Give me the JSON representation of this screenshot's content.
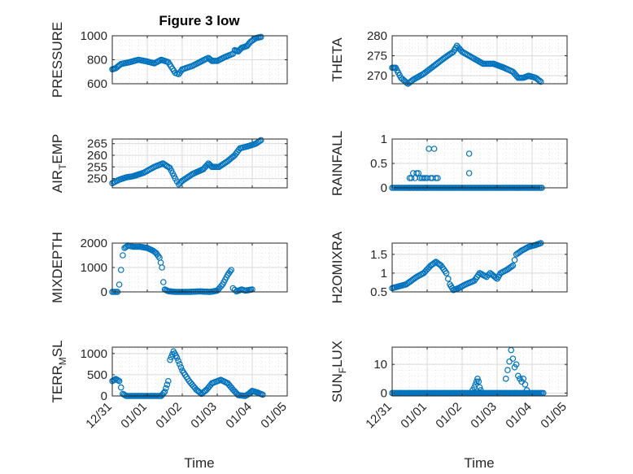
{
  "figure_title": "Figure 3 low",
  "chart_data": [
    {
      "id": "pressure",
      "type": "scatter",
      "ylabel": "PRESSURE",
      "ylim": [
        600,
        1000
      ],
      "yticks": [
        600,
        800,
        1000
      ],
      "xlim": [
        0,
        5
      ],
      "xticks": [
        0,
        1,
        2,
        3,
        4,
        5
      ],
      "xticklabels": [
        "12/31",
        "01/01",
        "01/02",
        "01/03",
        "01/04",
        "01/05"
      ],
      "grid": true,
      "marker": "circle",
      "keypoints": [
        [
          0,
          720
        ],
        [
          0.1,
          730
        ],
        [
          0.25,
          765
        ],
        [
          0.5,
          780
        ],
        [
          0.75,
          800
        ],
        [
          1.0,
          785
        ],
        [
          1.2,
          770
        ],
        [
          1.4,
          800
        ],
        [
          1.6,
          780
        ],
        [
          1.8,
          690
        ],
        [
          1.9,
          680
        ],
        [
          2.0,
          720
        ],
        [
          2.3,
          750
        ],
        [
          2.5,
          780
        ],
        [
          2.7,
          810
        ],
        [
          2.75,
          815
        ],
        [
          2.85,
          790
        ],
        [
          3.0,
          790
        ],
        [
          3.2,
          820
        ],
        [
          3.45,
          850
        ],
        [
          3.5,
          880
        ],
        [
          3.6,
          870
        ],
        [
          3.7,
          900
        ],
        [
          3.85,
          915
        ],
        [
          3.95,
          950
        ],
        [
          4.1,
          980
        ],
        [
          4.25,
          990
        ]
      ]
    },
    {
      "id": "theta",
      "type": "scatter",
      "ylabel": "THETA",
      "ylim": [
        268,
        280
      ],
      "yticks": [
        270,
        275,
        280
      ],
      "xlim": [
        0,
        5
      ],
      "xticks": [
        0,
        1,
        2,
        3,
        4,
        5
      ],
      "xticklabels": [
        "12/31",
        "01/01",
        "01/02",
        "01/03",
        "01/04",
        "01/05"
      ],
      "grid": true,
      "marker": "circle",
      "keypoints": [
        [
          0,
          272
        ],
        [
          0.1,
          272
        ],
        [
          0.25,
          269.5
        ],
        [
          0.45,
          268
        ],
        [
          0.6,
          269
        ],
        [
          0.9,
          270.5
        ],
        [
          1.2,
          272.5
        ],
        [
          1.5,
          274.5
        ],
        [
          1.75,
          276
        ],
        [
          1.85,
          277.5
        ],
        [
          2.0,
          276
        ],
        [
          2.3,
          274.5
        ],
        [
          2.6,
          273
        ],
        [
          2.9,
          273
        ],
        [
          3.2,
          272
        ],
        [
          3.45,
          271
        ],
        [
          3.6,
          269.5
        ],
        [
          3.75,
          269.5
        ],
        [
          3.9,
          270
        ],
        [
          4.1,
          269.5
        ],
        [
          4.25,
          268.5
        ]
      ]
    },
    {
      "id": "air_temp",
      "type": "scatter",
      "ylabel_parts": [
        "AIR",
        "T",
        "EMP"
      ],
      "ylim": [
        246,
        267
      ],
      "yticks": [
        250,
        255,
        260,
        265
      ],
      "xlim": [
        0,
        5
      ],
      "xticks": [
        0,
        1,
        2,
        3,
        4,
        5
      ],
      "xticklabels": [
        "12/31",
        "01/01",
        "01/02",
        "01/03",
        "01/04",
        "01/05"
      ],
      "grid": true,
      "marker": "circle",
      "keypoints": [
        [
          0,
          248
        ],
        [
          0.2,
          249.5
        ],
        [
          0.4,
          250.5
        ],
        [
          0.6,
          251
        ],
        [
          0.9,
          252.5
        ],
        [
          1.2,
          255
        ],
        [
          1.45,
          256.5
        ],
        [
          1.65,
          254.5
        ],
        [
          1.8,
          250
        ],
        [
          1.9,
          247.5
        ],
        [
          2.0,
          249
        ],
        [
          2.3,
          252
        ],
        [
          2.6,
          254
        ],
        [
          2.75,
          256.5
        ],
        [
          2.85,
          255
        ],
        [
          3.05,
          255
        ],
        [
          3.3,
          257.5
        ],
        [
          3.5,
          260
        ],
        [
          3.65,
          263
        ],
        [
          3.9,
          264
        ],
        [
          4.1,
          265
        ],
        [
          4.25,
          266.5
        ]
      ]
    },
    {
      "id": "rainfall",
      "type": "scatter",
      "ylabel": "RAINFALL",
      "ylim": [
        0,
        1
      ],
      "yticks": [
        0,
        0.5,
        1
      ],
      "xlim": [
        0,
        5
      ],
      "xticks": [
        0,
        1,
        2,
        3,
        4,
        5
      ],
      "xticklabels": [
        "12/31",
        "01/01",
        "01/02",
        "01/03",
        "01/04",
        "01/05"
      ],
      "grid": true,
      "marker": "circle",
      "zero_range": [
        0,
        4.3
      ],
      "points": [
        [
          0.5,
          0.2
        ],
        [
          0.55,
          0.2
        ],
        [
          0.6,
          0.3
        ],
        [
          0.65,
          0.2
        ],
        [
          0.7,
          0.3
        ],
        [
          0.75,
          0.3
        ],
        [
          0.8,
          0.2
        ],
        [
          0.85,
          0.2
        ],
        [
          0.9,
          0.2
        ],
        [
          0.95,
          0.2
        ],
        [
          1.0,
          0.2
        ],
        [
          1.05,
          0.8
        ],
        [
          1.1,
          0.2
        ],
        [
          1.15,
          0.2
        ],
        [
          1.2,
          0.8
        ],
        [
          1.25,
          0.2
        ],
        [
          1.3,
          0.2
        ],
        [
          2.2,
          0.7
        ],
        [
          2.2,
          0.3
        ],
        [
          0.95,
          0.0
        ],
        [
          0.5,
          0.0
        ],
        [
          0.7,
          0.0
        ]
      ]
    },
    {
      "id": "mixdepth",
      "type": "scatter",
      "ylabel": "MIXDEPTH",
      "ylim": [
        0,
        2000
      ],
      "yticks": [
        0,
        1000,
        2000
      ],
      "xlim": [
        0,
        5
      ],
      "xticks": [
        0,
        1,
        2,
        3,
        4,
        5
      ],
      "xticklabels": [
        "12/31",
        "01/01",
        "01/02",
        "01/03",
        "01/04",
        "01/05"
      ],
      "grid": true,
      "marker": "circle",
      "keypoints": [
        [
          0,
          0
        ],
        [
          0.15,
          0
        ],
        [
          0.2,
          300
        ],
        [
          0.25,
          900
        ],
        [
          0.3,
          1500
        ],
        [
          0.35,
          1800
        ],
        [
          0.45,
          1900
        ],
        [
          0.6,
          1850
        ],
        [
          0.8,
          1850
        ],
        [
          1.0,
          1800
        ],
        [
          1.15,
          1700
        ],
        [
          1.25,
          1600
        ],
        [
          1.35,
          1400
        ],
        [
          1.42,
          1000
        ],
        [
          1.46,
          400
        ],
        [
          1.5,
          100
        ],
        [
          1.6,
          30
        ],
        [
          1.8,
          0
        ],
        [
          2.2,
          0
        ],
        [
          2.5,
          20
        ],
        [
          2.8,
          0
        ],
        [
          3.0,
          50
        ],
        [
          3.15,
          300
        ],
        [
          3.3,
          700
        ],
        [
          3.4,
          900
        ],
        [
          3.45,
          150
        ],
        [
          3.55,
          20
        ],
        [
          3.7,
          100
        ],
        [
          3.8,
          50
        ],
        [
          4.0,
          100
        ]
      ]
    },
    {
      "id": "h2omixra",
      "type": "scatter",
      "ylabel": "H2OMIXRA",
      "ylim": [
        0.5,
        1.8
      ],
      "yticks": [
        0.5,
        1,
        1.5
      ],
      "xlim": [
        0,
        5
      ],
      "xticks": [
        0,
        1,
        2,
        3,
        4,
        5
      ],
      "xticklabels": [
        "12/31",
        "01/01",
        "01/02",
        "01/03",
        "01/04",
        "01/05"
      ],
      "grid": true,
      "marker": "circle",
      "keypoints": [
        [
          0,
          0.6
        ],
        [
          0.2,
          0.65
        ],
        [
          0.4,
          0.7
        ],
        [
          0.55,
          0.8
        ],
        [
          0.7,
          0.9
        ],
        [
          0.9,
          1.0
        ],
        [
          1.1,
          1.2
        ],
        [
          1.25,
          1.3
        ],
        [
          1.4,
          1.2
        ],
        [
          1.55,
          1.0
        ],
        [
          1.65,
          0.7
        ],
        [
          1.75,
          0.55
        ],
        [
          1.9,
          0.6
        ],
        [
          2.1,
          0.7
        ],
        [
          2.35,
          0.8
        ],
        [
          2.5,
          1.0
        ],
        [
          2.7,
          0.9
        ],
        [
          2.8,
          1.0
        ],
        [
          3.0,
          0.85
        ],
        [
          3.1,
          1.0
        ],
        [
          3.3,
          1.1
        ],
        [
          3.45,
          1.2
        ],
        [
          3.55,
          1.5
        ],
        [
          3.7,
          1.6
        ],
        [
          3.9,
          1.7
        ],
        [
          4.1,
          1.75
        ],
        [
          4.25,
          1.8
        ]
      ]
    },
    {
      "id": "terr_msl",
      "type": "scatter",
      "ylabel_parts": [
        "TERR",
        "M",
        "SL"
      ],
      "ylim": [
        0,
        1150
      ],
      "yticks": [
        0,
        500,
        1000
      ],
      "xlim": [
        0,
        5
      ],
      "xticks": [
        0,
        1,
        2,
        3,
        4,
        5
      ],
      "xticklabels": [
        "12/31",
        "01/01",
        "01/02",
        "01/03",
        "01/04",
        "01/05"
      ],
      "grid": true,
      "marker": "circle",
      "keypoints": [
        [
          0,
          350
        ],
        [
          0.1,
          400
        ],
        [
          0.2,
          350
        ],
        [
          0.25,
          200
        ],
        [
          0.3,
          50
        ],
        [
          0.4,
          0
        ],
        [
          1.0,
          0
        ],
        [
          1.4,
          0
        ],
        [
          1.5,
          100
        ],
        [
          1.6,
          350
        ],
        [
          1.65,
          850
        ],
        [
          1.75,
          1050
        ],
        [
          1.85,
          900
        ],
        [
          2.0,
          600
        ],
        [
          2.2,
          350
        ],
        [
          2.4,
          150
        ],
        [
          2.55,
          50
        ],
        [
          2.7,
          150
        ],
        [
          2.85,
          300
        ],
        [
          3.1,
          380
        ],
        [
          3.3,
          300
        ],
        [
          3.45,
          150
        ],
        [
          3.6,
          20
        ],
        [
          3.8,
          0
        ],
        [
          3.9,
          50
        ],
        [
          4.0,
          120
        ],
        [
          4.15,
          80
        ],
        [
          4.3,
          30
        ]
      ]
    },
    {
      "id": "sun_flux",
      "type": "scatter",
      "ylabel_parts": [
        "SUN",
        "F",
        "LUX"
      ],
      "ylim": [
        -1,
        16
      ],
      "yticks": [
        0,
        10
      ],
      "xlim": [
        0,
        5
      ],
      "xticks": [
        0,
        1,
        2,
        3,
        4,
        5
      ],
      "xticklabels": [
        "12/31",
        "01/01",
        "01/02",
        "01/03",
        "01/04",
        "01/05"
      ],
      "grid": true,
      "marker": "circle",
      "zero_range": [
        0,
        4.35
      ],
      "points": [
        [
          2.3,
          1
        ],
        [
          2.35,
          2
        ],
        [
          2.38,
          3
        ],
        [
          2.41,
          4
        ],
        [
          2.44,
          5
        ],
        [
          2.47,
          4
        ],
        [
          2.5,
          2
        ],
        [
          2.53,
          1
        ],
        [
          3.25,
          5
        ],
        [
          3.3,
          8
        ],
        [
          3.35,
          11
        ],
        [
          3.4,
          15
        ],
        [
          3.45,
          12
        ],
        [
          3.5,
          9
        ],
        [
          3.55,
          10
        ],
        [
          3.6,
          6
        ],
        [
          3.65,
          5
        ],
        [
          3.7,
          4
        ],
        [
          3.75,
          5
        ],
        [
          3.8,
          3
        ],
        [
          3.85,
          1
        ]
      ]
    }
  ],
  "xlabel": "Time"
}
